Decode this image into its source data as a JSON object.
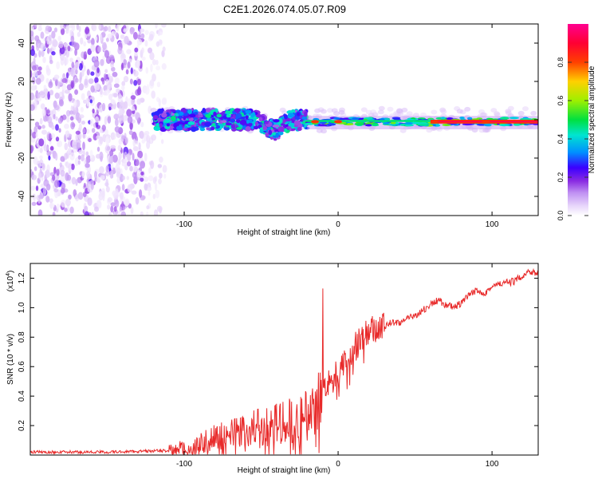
{
  "figure_title": "C2E1.2026.074.05.07.R09",
  "chart_data": [
    {
      "type": "heatmap",
      "title": "C2E1.2026.074.05.07.R09",
      "xlabel": "Height of straight line (km)",
      "ylabel": "Frequency (Hz)",
      "xlim": [
        -200,
        130
      ],
      "ylim": [
        -50,
        50
      ],
      "x_ticks": [
        -100,
        0,
        100
      ],
      "y_ticks": [
        -40,
        -20,
        0,
        20,
        40
      ],
      "x_tick_labels": [
        "-100",
        "0",
        "100"
      ],
      "y_tick_labels": [
        "-40",
        "-20",
        "0",
        "20",
        "40"
      ],
      "colorbar": {
        "label": "Normalized spectral amplitude",
        "range": [
          0,
          1
        ],
        "ticks": [
          0.0,
          0.2,
          0.4,
          0.6,
          0.8
        ],
        "tick_labels": [
          "0.0",
          "0.2",
          "0.4",
          "0.6",
          "0.8"
        ],
        "colormap": [
          "#ffffff",
          "#e8d6fb",
          "#bf8ff2",
          "#8a2be2",
          "#3b00ff",
          "#0090ff",
          "#00e5d0",
          "#00e040",
          "#9ef000",
          "#ffd000",
          "#ff4000",
          "#ff0033",
          "#ff0090"
        ]
      },
      "regions": [
        {
          "name": "noise",
          "x_range": [
            -200,
            -112
          ],
          "f_range": [
            -50,
            50
          ],
          "amplitude": 0.1
        },
        {
          "name": "turbulent-signal",
          "x_range": [
            -120,
            -20
          ],
          "f_center": 0,
          "f_halfwidth": 5,
          "amplitude": 0.35
        },
        {
          "name": "stable-signal",
          "x_range": [
            -20,
            130
          ],
          "f_center": -1,
          "f_halfwidth": 2,
          "amplitude": 0.6
        },
        {
          "name": "peak-band",
          "x_range": [
            60,
            130
          ],
          "f_center": -1,
          "f_halfwidth": 1,
          "amplitude": 0.95
        }
      ]
    },
    {
      "type": "line",
      "xlabel": "Height of straight line (km)",
      "ylabel": "SNR (10 * v/v)",
      "y_exponent_label": "(x10",
      "y_exponent_power": "4",
      "y_exponent_close": ")",
      "xlim": [
        -200,
        130
      ],
      "ylim": [
        0,
        1.3
      ],
      "x_ticks": [
        -100,
        0,
        100
      ],
      "x_tick_labels": [
        "-100",
        "0",
        "100"
      ],
      "y_ticks": [
        0.2,
        0.4,
        0.6,
        0.8,
        1.0,
        1.2
      ],
      "y_tick_labels": [
        "0.2",
        "0.4",
        "0.6",
        "0.8",
        "1.0",
        "1.2"
      ],
      "color": "#e82a2a",
      "series": [
        {
          "name": "SNR",
          "x": [
            -200,
            -150,
            -110,
            -100,
            -90,
            -80,
            -70,
            -60,
            -50,
            -40,
            -30,
            -20,
            -15,
            -10,
            -5,
            0,
            5,
            10,
            15,
            20,
            25,
            30,
            35,
            40,
            45,
            50,
            55,
            60,
            65,
            70,
            75,
            80,
            85,
            90,
            95,
            100,
            105,
            110,
            115,
            120,
            125,
            130
          ],
          "y": [
            0.02,
            0.02,
            0.03,
            0.05,
            0.08,
            0.12,
            0.15,
            0.17,
            0.19,
            0.21,
            0.23,
            0.26,
            0.33,
            0.45,
            0.52,
            0.57,
            0.62,
            0.72,
            0.78,
            0.83,
            0.86,
            0.88,
            0.9,
            0.9,
            0.92,
            0.95,
            0.98,
            1.02,
            1.05,
            1.02,
            1.0,
            1.03,
            1.08,
            1.12,
            1.1,
            1.14,
            1.16,
            1.17,
            1.18,
            1.22,
            1.25,
            1.23
          ]
        }
      ],
      "spike": {
        "x": -10,
        "y": 1.13
      }
    }
  ]
}
